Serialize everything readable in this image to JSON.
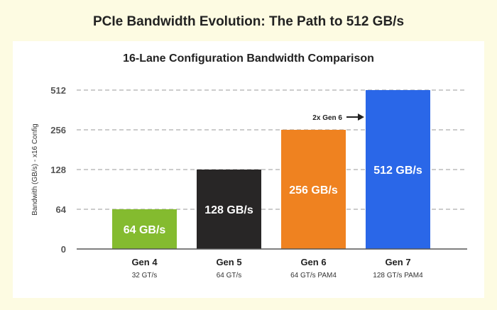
{
  "title": "PCIe Bandwidth Evolution: The Path to 512 GB/s",
  "chart_data": {
    "type": "bar",
    "title": "16-Lane Configuration Bandwidth Comparison",
    "ylabel": "Bandwith (GB/s) - x16 Config",
    "xlabel": "",
    "y_ticks": [
      0,
      64,
      128,
      256,
      512
    ],
    "y_scale": "evenly spaced ticks (doubling)",
    "grid": "horizontal dashed",
    "categories": [
      "Gen 4",
      "Gen 5",
      "Gen 6",
      "Gen 7"
    ],
    "category_sublabels": [
      "32 GT/s",
      "64 GT/s",
      "64 GT/s PAM4",
      "128 GT/s PAM4"
    ],
    "values": [
      64,
      128,
      256,
      512
    ],
    "data_labels": [
      "64 GB/s",
      "128 GB/s",
      "256 GB/s",
      "512 GB/s"
    ],
    "colors": [
      "#84bb2f",
      "#282626",
      "#ef8220",
      "#2a67e8"
    ],
    "annotation": "2x Gen 6"
  }
}
